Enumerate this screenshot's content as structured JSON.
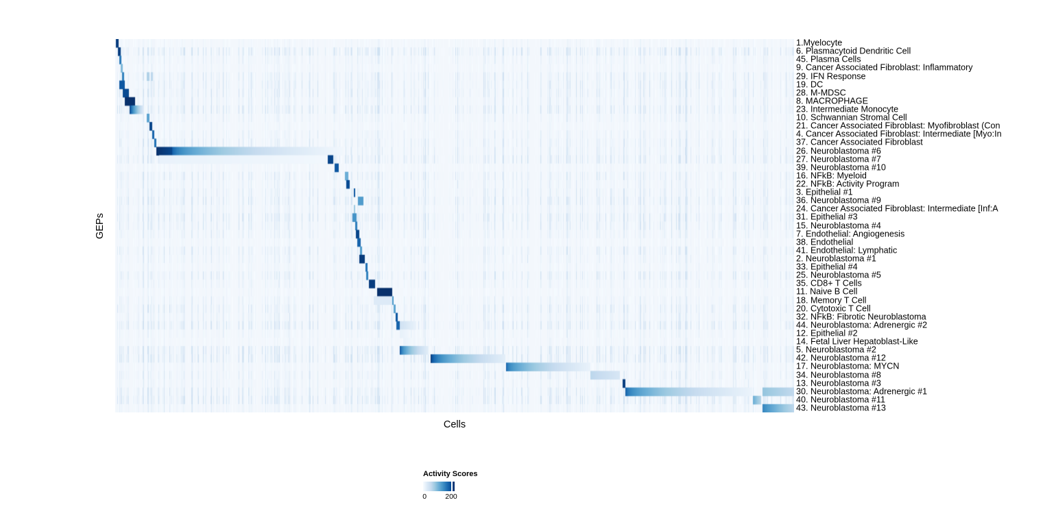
{
  "chart_data": {
    "type": "heatmap",
    "title": "",
    "xlabel": "Cells",
    "ylabel": "GEPs",
    "legend_title": "Activity Scores",
    "legend_min_label": "0",
    "legend_tick_label": "200",
    "value_scale": {
      "min": 0,
      "tick": 200,
      "max": 220
    },
    "colormap": [
      "#f7fbff",
      "#deebf7",
      "#c6dbef",
      "#9ecae1",
      "#6baed6",
      "#4292c6",
      "#2171b5",
      "#08519c",
      "#08306b"
    ],
    "base_color": "#f3f7fc",
    "segment_format": "segments are [x_start_fraction, x_end_fraction, intensity_start, intensity_end, falloff_exponent]; intensity 1.0 = darkest blue (activity ~220)",
    "rows": [
      {
        "label": "1.Myelocyte",
        "segments": [
          [
            0.0015,
            0.0055,
            0.95,
            0.95,
            1
          ]
        ]
      },
      {
        "label": "6. Plasmacytoid Dendritic Cell",
        "segments": [
          [
            0.004,
            0.008,
            0.95,
            0.95,
            1
          ]
        ]
      },
      {
        "label": "45. Plasma Cells",
        "segments": [
          [
            0.006,
            0.0095,
            0.72,
            0.72,
            1
          ]
        ]
      },
      {
        "label": "9. Cancer Associated Fibroblast: Inflammatory",
        "segments": [
          [
            0.0085,
            0.0115,
            0.45,
            0.45,
            1
          ]
        ]
      },
      {
        "label": "29. IFN Response",
        "segments": [
          [
            0.01,
            0.0135,
            0.68,
            0.68,
            1
          ],
          [
            0.0465,
            0.05,
            0.32,
            0.32,
            1
          ],
          [
            0.0525,
            0.056,
            0.28,
            0.28,
            1
          ]
        ]
      },
      {
        "label": "19. DC",
        "segments": [
          [
            0.0061,
            0.0141,
            0.85,
            0.85,
            1
          ]
        ]
      },
      {
        "label": "28. M-MDSC",
        "segments": [
          [
            0.0111,
            0.0202,
            0.9,
            0.9,
            1
          ]
        ]
      },
      {
        "label": "8. MACROPHAGE",
        "segments": [
          [
            0.0141,
            0.0293,
            1.0,
            1.0,
            1
          ]
        ]
      },
      {
        "label": "23. Intermediate Monocyte",
        "segments": [
          [
            0.0212,
            0.0424,
            0.92,
            0.12,
            0.7
          ]
        ]
      },
      {
        "label": "10. Schwannian Stromal Cell",
        "segments": [
          [
            0.046,
            0.051,
            0.55,
            0.55,
            1
          ]
        ]
      },
      {
        "label": "21. Cancer Associated Fibroblast: Myofibroblast (Con",
        "segments": [
          [
            0.0505,
            0.0545,
            0.92,
            0.92,
            1
          ]
        ]
      },
      {
        "label": "4. Cancer Associated Fibroblast: Intermediate [Myo:In",
        "segments": [
          [
            0.0545,
            0.0578,
            0.8,
            0.8,
            1
          ]
        ]
      },
      {
        "label": "37. Cancer Associated Fibroblast",
        "segments": [
          [
            0.0578,
            0.0608,
            0.75,
            0.75,
            1
          ]
        ]
      },
      {
        "label": "26. Neuroblastoma #6",
        "segments": [
          [
            0.0606,
            0.0828,
            1.0,
            0.92,
            1
          ],
          [
            0.0828,
            0.335,
            0.92,
            0.03,
            0.4
          ]
        ]
      },
      {
        "label": "27. Neuroblastoma #7",
        "segments": [
          [
            0.065,
            0.31,
            0.07,
            0.03,
            1
          ],
          [
            0.3131,
            0.3212,
            0.92,
            0.92,
            1
          ]
        ]
      },
      {
        "label": "39. Neuroblastoma #10",
        "segments": [
          [
            0.3232,
            0.3293,
            0.85,
            0.85,
            1
          ]
        ]
      },
      {
        "label": "16. NFkB: Myeloid",
        "segments": [
          [
            0.3384,
            0.3434,
            0.5,
            0.5,
            1
          ]
        ]
      },
      {
        "label": "22. NFkB: Activity Program",
        "segments": [
          [
            0.3404,
            0.3455,
            0.9,
            0.9,
            1
          ]
        ]
      },
      {
        "label": "3. Epithelial #1",
        "segments": [
          [
            0.3515,
            0.354,
            0.85,
            0.85,
            1
          ]
        ]
      },
      {
        "label": "36. Neuroblastoma #9",
        "segments": [
          [
            0.3576,
            0.3657,
            0.58,
            0.58,
            1
          ]
        ]
      },
      {
        "label": "24. Cancer Associated Fibroblast: Intermediate [Inf:A",
        "segments": [
          [
            0.3515,
            0.3535,
            0.38,
            0.38,
            1
          ]
        ]
      },
      {
        "label": "31. Epithelial #3",
        "segments": [
          [
            0.3495,
            0.3556,
            0.62,
            0.62,
            1
          ]
        ]
      },
      {
        "label": "15. Neuroblastoma #4",
        "segments": [
          [
            0.3535,
            0.3566,
            0.7,
            0.7,
            1
          ]
        ]
      },
      {
        "label": "7. Endothelial: Angiogenesis",
        "segments": [
          [
            0.3545,
            0.3591,
            0.92,
            0.92,
            1
          ]
        ]
      },
      {
        "label": "38. Endothelial",
        "segments": [
          [
            0.3566,
            0.3616,
            0.8,
            0.8,
            1
          ]
        ]
      },
      {
        "label": "41. Endothelial: Lymphatic",
        "segments": [
          [
            0.3606,
            0.3636,
            0.58,
            0.58,
            1
          ]
        ]
      },
      {
        "label": "2. Neuroblastoma #1",
        "segments": [
          [
            0.3596,
            0.3677,
            0.96,
            0.96,
            1
          ]
        ]
      },
      {
        "label": "33. Epithelial #4",
        "segments": [
          [
            0.3687,
            0.3717,
            0.75,
            0.75,
            1
          ]
        ]
      },
      {
        "label": "25. Neuroblastoma #5",
        "segments": [
          [
            0.3702,
            0.3732,
            0.68,
            0.68,
            1
          ]
        ]
      },
      {
        "label": "35. CD8+ T Cells",
        "segments": [
          [
            0.3737,
            0.3833,
            0.95,
            0.95,
            1
          ]
        ]
      },
      {
        "label": "11. Naive B Cell",
        "segments": [
          [
            0.386,
            0.408,
            1.0,
            1.0,
            1
          ]
        ]
      },
      {
        "label": "18. Memory T Cell",
        "segments": [
          [
            0.3808,
            0.408,
            0.13,
            0.13,
            1
          ],
          [
            0.4081,
            0.4106,
            0.6,
            0.6,
            1
          ]
        ]
      },
      {
        "label": "20. Cytotoxic T Cell",
        "segments": [
          [
            0.4106,
            0.4136,
            0.55,
            0.55,
            1
          ]
        ]
      },
      {
        "label": "32. NFkB: Fibrotic Neuroblastoma",
        "segments": [
          [
            0.4131,
            0.4157,
            0.85,
            0.85,
            1
          ]
        ]
      },
      {
        "label": "44. Neuroblastoma: Adrenergic #2",
        "segments": [
          [
            0.4146,
            0.4187,
            0.8,
            0.8,
            1
          ],
          [
            0.4187,
            0.4434,
            0.2,
            0.07,
            1
          ]
        ]
      },
      {
        "label": "12. Epithelial #2",
        "segments": [
          [
            0.419,
            0.432,
            0.08,
            0.04,
            1
          ]
        ]
      },
      {
        "label": "14. Fetal Liver Hepatoblast-Like",
        "segments": [
          [
            0.424,
            0.437,
            0.07,
            0.03,
            1
          ]
        ]
      },
      {
        "label": "5. Neuroblastoma #2",
        "segments": [
          [
            0.4192,
            0.4616,
            0.88,
            0.1,
            0.5
          ]
        ]
      },
      {
        "label": "42. Neuroblastoma #12",
        "segments": [
          [
            0.4646,
            0.5747,
            1.0,
            0.1,
            0.45
          ]
        ]
      },
      {
        "label": "17. Neuroblastoma: MYCN",
        "segments": [
          [
            0.5757,
            0.7,
            0.8,
            0.07,
            0.5
          ]
        ]
      },
      {
        "label": "34. Neuroblastoma #8",
        "segments": [
          [
            0.7,
            0.7434,
            0.28,
            0.16,
            1
          ]
        ]
      },
      {
        "label": "13. Neuroblastoma #3",
        "segments": [
          [
            0.7475,
            0.7515,
            0.95,
            0.95,
            1
          ]
        ]
      },
      {
        "label": "30. Neuroblastoma: Adrenergic #1",
        "segments": [
          [
            0.7515,
            0.938,
            0.85,
            0.06,
            0.45
          ],
          [
            0.9535,
            1.0,
            0.4,
            0.26,
            1
          ]
        ]
      },
      {
        "label": "40. Neuroblastoma #11",
        "segments": [
          [
            0.9394,
            0.9515,
            0.5,
            0.3,
            1
          ]
        ]
      },
      {
        "label": "43. Neuroblastoma #13",
        "segments": [
          [
            0.9535,
            1.0,
            0.68,
            0.28,
            0.8
          ]
        ]
      }
    ]
  }
}
